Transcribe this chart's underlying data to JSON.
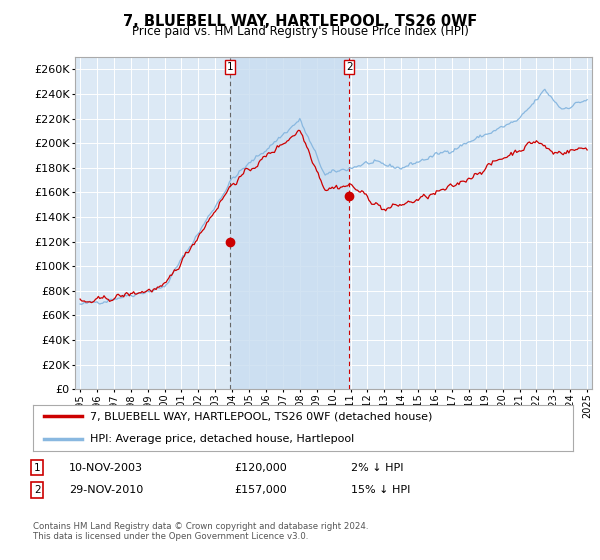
{
  "title": "7, BLUEBELL WAY, HARTLEPOOL, TS26 0WF",
  "subtitle": "Price paid vs. HM Land Registry's House Price Index (HPI)",
  "ylim": [
    0,
    270000
  ],
  "yticks": [
    0,
    20000,
    40000,
    60000,
    80000,
    100000,
    120000,
    140000,
    160000,
    180000,
    200000,
    220000,
    240000,
    260000
  ],
  "bg_color": "#dce9f5",
  "grid_color": "#ffffff",
  "hpi_color": "#89b8e0",
  "price_color": "#cc0000",
  "shade_color": "#c8ddf0",
  "transaction1": {
    "label": "1",
    "date": "10-NOV-2003",
    "price": 120000,
    "note": "2% ↓ HPI",
    "x_year": 2003.875
  },
  "transaction2": {
    "label": "2",
    "date": "29-NOV-2010",
    "price": 157000,
    "note": "15% ↓ HPI",
    "x_year": 2010.917
  },
  "legend_house_label": "7, BLUEBELL WAY, HARTLEPOOL, TS26 0WF (detached house)",
  "legend_hpi_label": "HPI: Average price, detached house, Hartlepool",
  "footer": "Contains HM Land Registry data © Crown copyright and database right 2024.\nThis data is licensed under the Open Government Licence v3.0.",
  "xlim_left": 1994.7,
  "xlim_right": 2025.3
}
